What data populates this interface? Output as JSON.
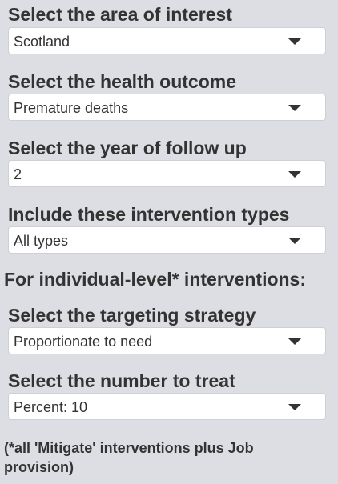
{
  "controls": [
    {
      "label": "Select the area of interest",
      "value": "Scotland"
    },
    {
      "label": "Select the health outcome",
      "value": "Premature deaths"
    },
    {
      "label": "Select the year of follow up",
      "value": "2"
    },
    {
      "label": "Include these intervention types",
      "value": "All types"
    }
  ],
  "individual_section": {
    "heading": "For individual-level* interventions:",
    "controls": [
      {
        "label": "Select the targeting strategy",
        "value": "Proportionate to need"
      },
      {
        "label": "Select the number to treat",
        "value": "Percent: 10"
      }
    ]
  },
  "footnote": "(*all 'Mitigate' interventions plus Job provision)",
  "icons": {
    "dropdown": "chevron-down-icon"
  }
}
